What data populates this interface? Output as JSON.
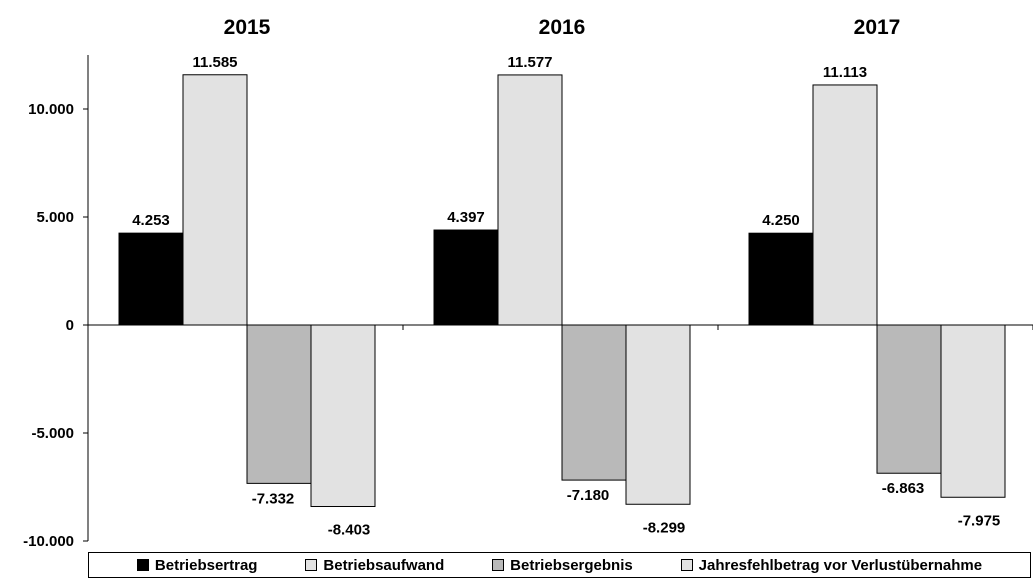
{
  "chart_data": {
    "type": "bar",
    "categories": [
      "2015",
      "2016",
      "2017"
    ],
    "series": [
      {
        "name": "Betriebsertrag",
        "values": [
          4253,
          4397,
          4250
        ],
        "labels": [
          "4.253",
          "4.397",
          "4.250"
        ],
        "color": "#000000"
      },
      {
        "name": "Betriebsaufwand",
        "values": [
          11585,
          11577,
          11113
        ],
        "labels": [
          "11.585",
          "11.577",
          "11.113"
        ],
        "color": "#e2e2e2"
      },
      {
        "name": "Betriebsergebnis",
        "values": [
          -7332,
          -7180,
          -6863
        ],
        "labels": [
          "-7.332",
          "-7.180",
          "-6.863"
        ],
        "color": "#b9b9b9"
      },
      {
        "name": "Jahresfehlbetrag vor Verlustübernahme",
        "values": [
          -8403,
          -8299,
          -7975
        ],
        "labels": [
          "-8.403",
          "-8.299",
          "-7.975"
        ],
        "color": "#e2e2e2"
      }
    ],
    "ylim": [
      -10000,
      12500
    ],
    "yticks": [
      -10000,
      -5000,
      0,
      5000,
      10000
    ],
    "ytick_labels": [
      "-10.000",
      "-5.000",
      "0",
      "5.000",
      "10.000"
    ],
    "title": "",
    "xlabel": "",
    "ylabel": "",
    "grid": false,
    "legend_position": "bottom"
  }
}
